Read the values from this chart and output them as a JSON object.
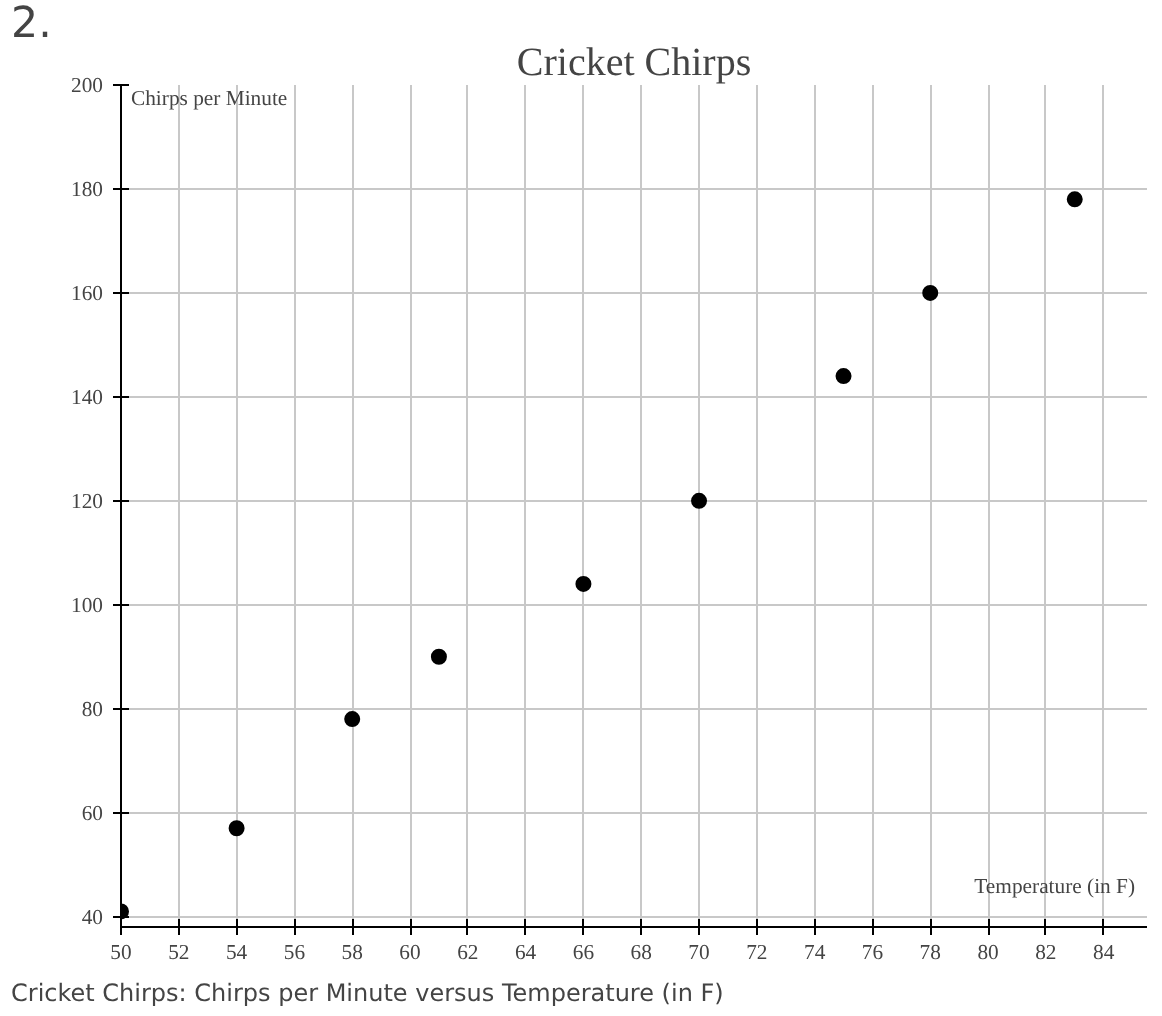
{
  "chart_data": {
    "type": "scatter",
    "title": "Cricket Chirps",
    "xlabel": "Temperature (in F)",
    "ylabel": "Chirps per Minute",
    "annotations": [
      "2.",
      "Cricket Chirps: Chirps per Minute versus Temperature (in F)"
    ],
    "x": [
      50,
      54,
      58,
      61,
      66,
      70,
      75,
      78,
      83
    ],
    "series": [
      {
        "color": "#000000",
        "values": [
          41,
          57,
          78,
          90,
          104,
          120,
          144,
          160,
          178
        ]
      }
    ],
    "xlim": [
      50,
      85.5
    ],
    "xticks": [
      50,
      52,
      54,
      56,
      58,
      60,
      62,
      64,
      66,
      68,
      70,
      72,
      74,
      76,
      78,
      80,
      82,
      84
    ],
    "ylim": [
      38,
      200
    ],
    "yticks": [
      40,
      60,
      80,
      100,
      120,
      140,
      160,
      180,
      200
    ],
    "grid": true,
    "marker": "circle"
  }
}
